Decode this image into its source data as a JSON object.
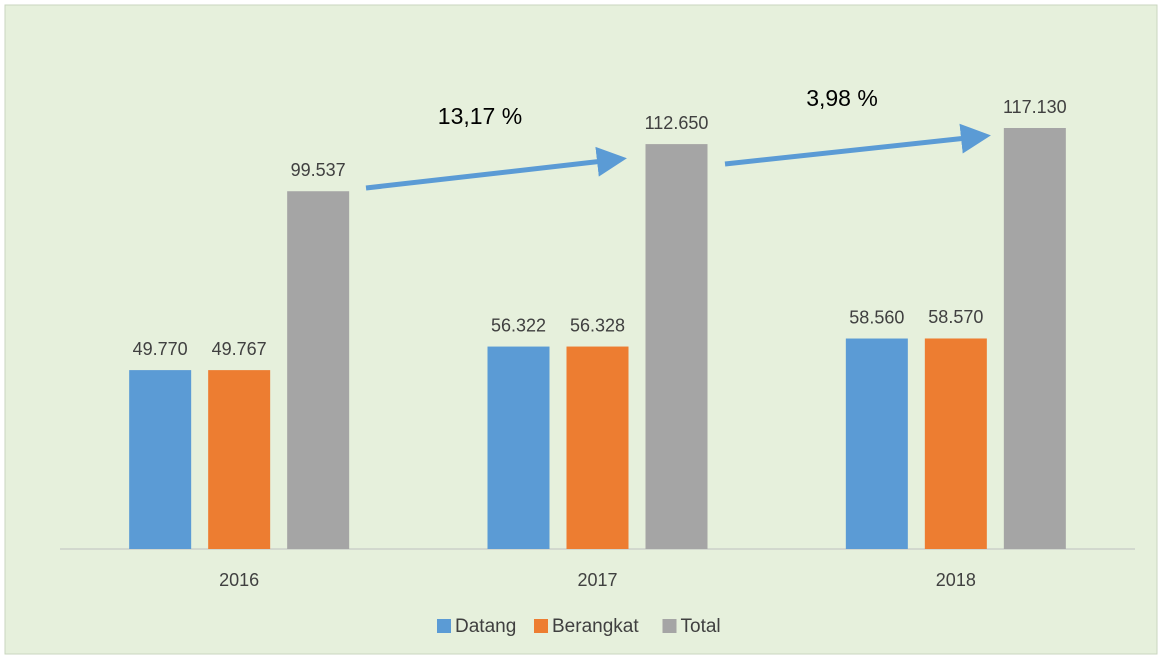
{
  "chart_data": {
    "type": "bar",
    "categories": [
      "2016",
      "2017",
      "2018"
    ],
    "series": [
      {
        "name": "Datang",
        "color": "#5b9bd5",
        "values": [
          49770,
          56322,
          58560
        ],
        "value_labels": [
          "49.770",
          "56.322",
          "58.560"
        ]
      },
      {
        "name": "Berangkat",
        "color": "#ed7d31",
        "values": [
          49767,
          56328,
          58570
        ],
        "value_labels": [
          "49.767",
          "56.328",
          "58.570"
        ]
      },
      {
        "name": "Total",
        "color": "#a5a5a5",
        "values": [
          99537,
          112650,
          117130
        ],
        "value_labels": [
          "99.537",
          "112.650",
          "117.130"
        ]
      }
    ],
    "annotations": [
      "13,17 %",
      "3,98 %"
    ]
  }
}
